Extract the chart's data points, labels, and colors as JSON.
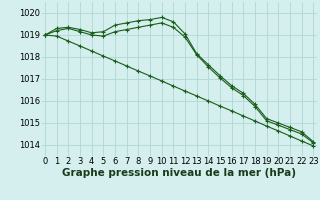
{
  "title": "Graphe pression niveau de la mer (hPa)",
  "background_color": "#d4efed",
  "grid_color": "#b0d8d4",
  "line_color": "#1a5c1a",
  "hours": [
    0,
    1,
    2,
    3,
    4,
    5,
    6,
    7,
    8,
    9,
    10,
    11,
    12,
    13,
    14,
    15,
    16,
    17,
    18,
    19,
    20,
    21,
    22,
    23
  ],
  "line1": [
    1019.0,
    1019.3,
    1019.35,
    1019.25,
    1019.1,
    1019.15,
    1019.45,
    1019.55,
    1019.65,
    1019.7,
    1019.8,
    1019.6,
    1019.05,
    1018.15,
    1017.65,
    1017.15,
    1016.7,
    1016.35,
    1015.85,
    1015.2,
    1015.0,
    1014.8,
    1014.6,
    1014.15
  ],
  "line2": [
    1019.0,
    1019.2,
    1019.3,
    1019.15,
    1019.0,
    1018.95,
    1019.15,
    1019.25,
    1019.35,
    1019.45,
    1019.55,
    1019.35,
    1018.9,
    1018.1,
    1017.55,
    1017.05,
    1016.6,
    1016.25,
    1015.75,
    1015.1,
    1014.9,
    1014.7,
    1014.5,
    1014.1
  ],
  "line3": [
    1019.0,
    1018.95,
    1018.72,
    1018.5,
    1018.27,
    1018.04,
    1017.82,
    1017.59,
    1017.36,
    1017.14,
    1016.91,
    1016.68,
    1016.45,
    1016.23,
    1016.0,
    1015.77,
    1015.55,
    1015.32,
    1015.09,
    1014.86,
    1014.64,
    1014.41,
    1014.18,
    1013.96
  ],
  "ylim": [
    1013.5,
    1020.5
  ],
  "yticks": [
    1014,
    1015,
    1016,
    1017,
    1018,
    1019,
    1020
  ],
  "tick_fontsize": 6,
  "xlabel_fontsize": 7.5
}
